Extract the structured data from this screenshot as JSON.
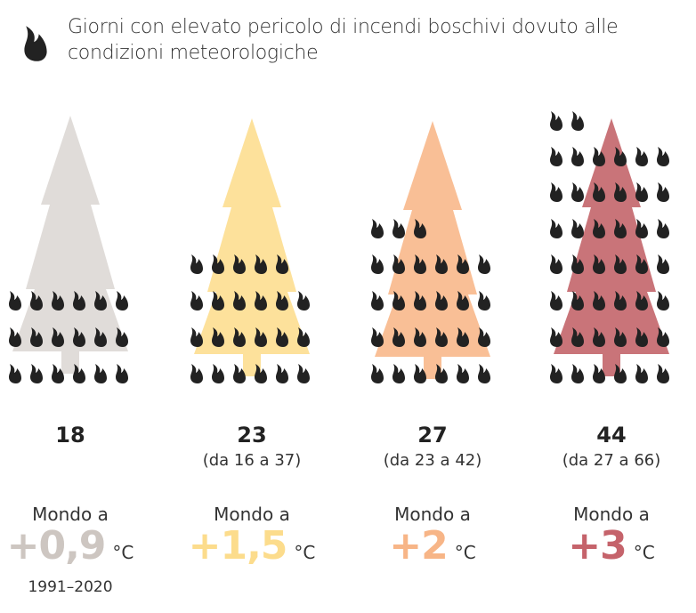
{
  "title": "Giorni con elevato pericolo di incendi boschivi dovuto alle condizioni meteorologiche",
  "icon": "flame-icon",
  "columns": [
    {
      "value": 18,
      "range": "",
      "label": "Mondo a",
      "temp": "+0,9",
      "unit": "°C",
      "period": "1991–2020",
      "tree_color": "#e0dcd9",
      "temp_color": "#cdc6c1"
    },
    {
      "value": 23,
      "range": "(da 16 a 37)",
      "label": "Mondo a",
      "temp": "+1,5",
      "unit": "°C",
      "period": "",
      "tree_color": "#fde19b",
      "temp_color": "#fcdc8c"
    },
    {
      "value": 27,
      "range": "(da 23 a 42)",
      "label": "Mondo a",
      "temp": "+2",
      "unit": "°C",
      "period": "",
      "tree_color": "#f9bf96",
      "temp_color": "#f7b587"
    },
    {
      "value": 44,
      "range": "(da 27 a 66)",
      "label": "Mondo a",
      "temp": "+3",
      "unit": "°C",
      "period": "",
      "tree_color": "#c97479",
      "temp_color": "#c5636b"
    }
  ]
}
